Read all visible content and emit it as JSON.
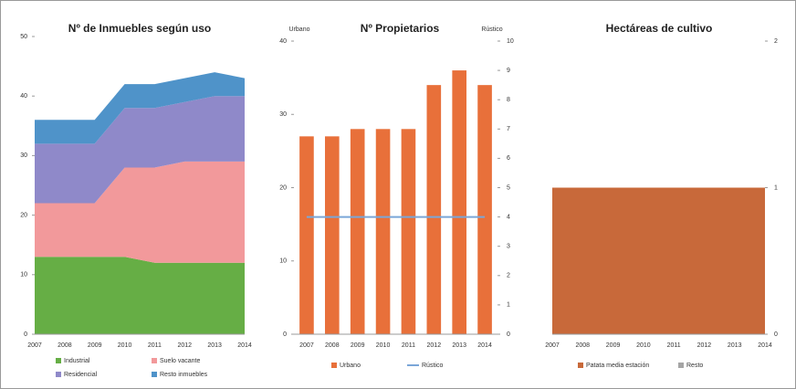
{
  "chart_data": [
    {
      "type": "area",
      "title": "Nº de Inmuebles según uso",
      "categories": [
        "2007",
        "2008",
        "2009",
        "2010",
        "2011",
        "2012",
        "2013",
        "2014"
      ],
      "series": [
        {
          "name": "Industrial",
          "color": "#66ae45",
          "values": [
            13,
            13,
            13,
            13,
            12,
            12,
            12,
            12
          ]
        },
        {
          "name": "Suelo vacante",
          "color": "#f2999b",
          "values": [
            9,
            9,
            9,
            15,
            16,
            17,
            17,
            17
          ]
        },
        {
          "name": "Residencial",
          "color": "#8f89c9",
          "values": [
            10,
            10,
            10,
            10,
            10,
            10,
            11,
            11
          ]
        },
        {
          "name": "Resto inmuebles",
          "color": "#4f93c9",
          "values": [
            4,
            4,
            4,
            4,
            4,
            4,
            4,
            3
          ]
        }
      ],
      "ylim": [
        0,
        50
      ],
      "yticks": [
        0,
        10,
        20,
        30,
        40,
        50
      ],
      "grid": false
    },
    {
      "type": "bar",
      "title": "Nº Propietarios",
      "y_label": "Urbano",
      "y2_label": "Rústico",
      "categories": [
        "2007",
        "2008",
        "2009",
        "2010",
        "2011",
        "2012",
        "2013",
        "2014"
      ],
      "series": [
        {
          "name": "Urbano",
          "color": "#e8703a",
          "values": [
            27,
            27,
            28,
            28,
            28,
            34,
            36,
            34
          ]
        },
        {
          "name": "Rústico",
          "color": "#7aa6d8",
          "type": "line",
          "axis": "y2",
          "values": [
            4,
            4,
            4,
            4,
            4,
            4,
            4,
            4
          ]
        }
      ],
      "ylim": [
        0,
        40
      ],
      "yticks": [
        0,
        10,
        20,
        30,
        40
      ],
      "y2lim": [
        0,
        10
      ],
      "y2ticks": [
        0,
        1,
        2,
        3,
        4,
        5,
        6,
        7,
        8,
        9,
        10
      ],
      "grid": false
    },
    {
      "type": "area",
      "title": "Hectáreas de cultivo",
      "categories": [
        "2007",
        "2008",
        "2009",
        "2010",
        "2011",
        "2012",
        "2013",
        "2014"
      ],
      "series": [
        {
          "name": "Patata media estación",
          "color": "#c8693a",
          "values": [
            1,
            1,
            1,
            1,
            1,
            1,
            1,
            1
          ]
        },
        {
          "name": "Resto",
          "color": "#a5a5a5",
          "values": [
            0,
            0,
            0,
            0,
            0,
            0,
            0,
            0
          ]
        }
      ],
      "ylim": [
        0,
        2
      ],
      "yticks": [
        0,
        1,
        2
      ],
      "y_axis_side": "right",
      "grid": false
    }
  ]
}
